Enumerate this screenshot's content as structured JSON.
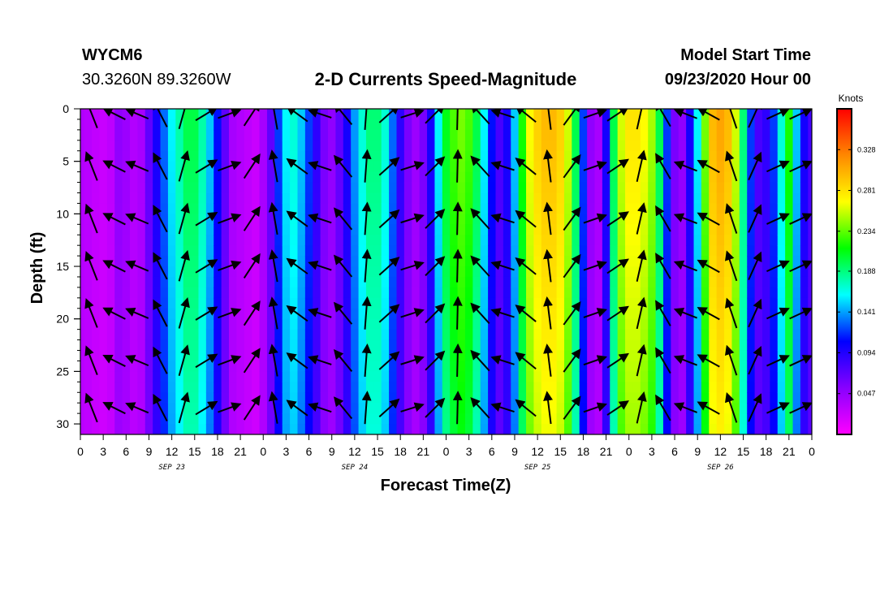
{
  "header": {
    "station": "WYCM6",
    "coords": "30.3260N 89.3260W",
    "title": "2-D Currents Speed-Magnitude",
    "model_label": "Model Start Time",
    "model_time": "09/23/2020 Hour 00"
  },
  "chart_data": {
    "type": "heatmap",
    "title": "2-D Currents Speed-Magnitude",
    "xlabel": "Forecast Time(Z)",
    "ylabel": "Depth (ft)",
    "x_range_hours": [
      0,
      96
    ],
    "x_tick_labels": [
      "0",
      "3",
      "6",
      "9",
      "12",
      "15",
      "18",
      "21",
      "0",
      "3",
      "6",
      "9",
      "12",
      "15",
      "18",
      "21",
      "0",
      "3",
      "6",
      "9",
      "12",
      "15",
      "18",
      "21",
      "0",
      "3",
      "6",
      "9",
      "12",
      "15",
      "18",
      "21",
      "0"
    ],
    "day_labels": [
      {
        "label": "SEP 23",
        "hour": 12
      },
      {
        "label": "SEP 24",
        "hour": 36
      },
      {
        "label": "SEP 25",
        "hour": 60
      },
      {
        "label": "SEP 26",
        "hour": 84
      }
    ],
    "y_range": [
      0,
      31
    ],
    "y_reversed": true,
    "y_ticks": [
      0,
      5,
      10,
      15,
      20,
      25,
      30
    ],
    "colorbar": {
      "title": "Knots",
      "range": [
        0,
        0.375
      ],
      "ticks": [
        "0.047",
        "0.094",
        "0.141",
        "0.188",
        "0.234",
        "0.281",
        "0.328"
      ],
      "tick_values": [
        0.047,
        0.094,
        0.141,
        0.188,
        0.234,
        0.281,
        0.328
      ],
      "colors": [
        "#ff00ff",
        "#8800ff",
        "#0000ff",
        "#00ffff",
        "#00ff00",
        "#ffff00",
        "#ff8800",
        "#ff0000"
      ]
    },
    "speed_profile": {
      "hours": [
        0,
        1,
        2,
        3,
        4,
        5,
        6,
        7,
        8,
        9,
        10,
        11,
        12,
        13,
        14,
        15,
        16,
        17,
        18,
        19,
        20,
        21,
        22,
        23,
        24,
        25,
        26,
        27,
        28,
        29,
        30,
        31,
        32,
        33,
        34,
        35,
        36,
        37,
        38,
        39,
        40,
        41,
        42,
        43,
        44,
        45,
        46,
        47,
        48,
        49,
        50,
        51,
        52,
        53,
        54,
        55,
        56,
        57,
        58,
        59,
        60,
        61,
        62,
        63,
        64,
        65,
        66,
        67,
        68,
        69,
        70,
        71,
        72,
        73,
        74,
        75,
        76,
        77,
        78,
        79,
        80,
        81,
        82,
        83,
        84,
        85,
        86,
        87,
        88,
        89,
        90,
        91,
        92,
        93,
        94,
        95,
        96
      ],
      "surface_knots": [
        0.035,
        0.032,
        0.028,
        0.025,
        0.03,
        0.05,
        0.045,
        0.035,
        0.04,
        0.07,
        0.1,
        0.13,
        0.16,
        0.18,
        0.2,
        0.2,
        0.18,
        0.15,
        0.11,
        0.07,
        0.04,
        0.035,
        0.03,
        0.025,
        0.04,
        0.07,
        0.12,
        0.16,
        0.17,
        0.15,
        0.12,
        0.09,
        0.06,
        0.05,
        0.07,
        0.1,
        0.14,
        0.17,
        0.19,
        0.19,
        0.17,
        0.13,
        0.09,
        0.06,
        0.045,
        0.06,
        0.1,
        0.16,
        0.21,
        0.23,
        0.24,
        0.23,
        0.2,
        0.16,
        0.11,
        0.08,
        0.1,
        0.15,
        0.22,
        0.27,
        0.29,
        0.3,
        0.3,
        0.29,
        0.26,
        0.2,
        0.12,
        0.05,
        0.04,
        0.1,
        0.2,
        0.26,
        0.28,
        0.28,
        0.27,
        0.25,
        0.2,
        0.12,
        0.06,
        0.05,
        0.1,
        0.16,
        0.24,
        0.3,
        0.31,
        0.3,
        0.26,
        0.19,
        0.12,
        0.08,
        0.09,
        0.12,
        0.17,
        0.22,
        0.15,
        0.1,
        0.08
      ]
    }
  }
}
